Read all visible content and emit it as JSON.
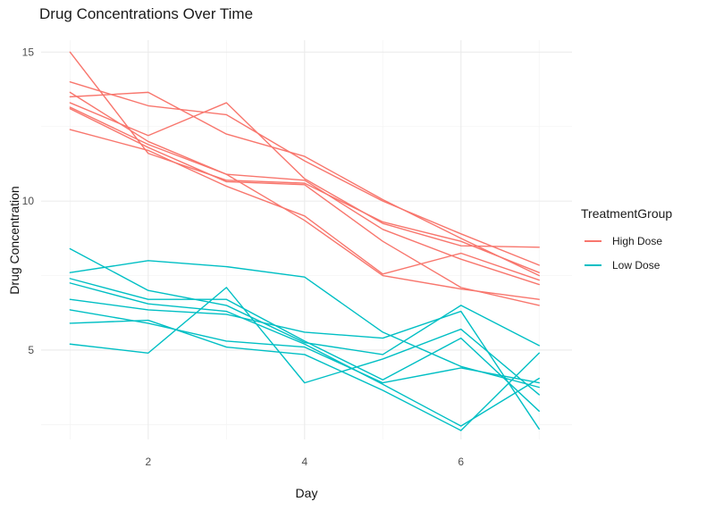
{
  "title": "Drug Concentrations Over Time",
  "legend": {
    "title": "TreatmentGroup",
    "items": [
      {
        "label": "High Dose",
        "color": "#F8766D"
      },
      {
        "label": "Low Dose",
        "color": "#00BFC4"
      }
    ]
  },
  "colors": {
    "high_dose": "#F8766D",
    "low_dose": "#00BFC4",
    "grid_major": "#EBEBEB",
    "grid_minor": "#F4F4F4",
    "tick_text": "#4D4D4D",
    "background": "#FFFFFF"
  },
  "chart_data": {
    "type": "line",
    "title": "Drug Concentrations Over Time",
    "xlabel": "Day",
    "ylabel": "Drug Concentration",
    "x": [
      1,
      2,
      3,
      4,
      5,
      6,
      7
    ],
    "x_major_ticks": [
      2,
      4,
      6
    ],
    "x_minor_ticks": [
      1,
      3,
      5,
      7
    ],
    "y_major_ticks": [
      5,
      10,
      15
    ],
    "y_minor_ticks": [
      2.5,
      7.5,
      12.5
    ],
    "xlim": [
      0.63,
      7.42
    ],
    "ylim": [
      2.0,
      15.4
    ],
    "grid": "major+minor",
    "legend_position": "right",
    "series": [
      {
        "group": "High Dose",
        "color": "#F8766D",
        "values": [
          15.0,
          11.6,
          10.7,
          10.6,
          9.3,
          8.65,
          7.6
        ]
      },
      {
        "group": "High Dose",
        "color": "#F8766D",
        "values": [
          14.0,
          13.2,
          12.9,
          11.35,
          10.0,
          8.9,
          7.85
        ]
      },
      {
        "group": "High Dose",
        "color": "#F8766D",
        "values": [
          13.5,
          13.65,
          12.25,
          11.5,
          10.05,
          8.75,
          7.5
        ]
      },
      {
        "group": "High Dose",
        "color": "#F8766D",
        "values": [
          13.3,
          12.2,
          13.3,
          10.75,
          9.25,
          8.5,
          8.45
        ]
      },
      {
        "group": "High Dose",
        "color": "#F8766D",
        "values": [
          13.15,
          11.9,
          10.9,
          10.7,
          9.05,
          8.05,
          7.2
        ]
      },
      {
        "group": "High Dose",
        "color": "#F8766D",
        "values": [
          13.1,
          11.8,
          10.65,
          10.55,
          8.65,
          7.1,
          6.5
        ]
      },
      {
        "group": "High Dose",
        "color": "#F8766D",
        "values": [
          12.4,
          11.7,
          10.5,
          9.5,
          7.55,
          8.25,
          7.35
        ]
      },
      {
        "group": "High Dose",
        "color": "#F8766D",
        "values": [
          13.65,
          12.0,
          10.9,
          9.35,
          7.5,
          7.05,
          6.7
        ]
      },
      {
        "group": "Low Dose",
        "color": "#00BFC4",
        "values": [
          8.4,
          7.0,
          6.5,
          5.25,
          4.85,
          6.5,
          5.15
        ]
      },
      {
        "group": "Low Dose",
        "color": "#00BFC4",
        "values": [
          7.6,
          8.0,
          7.8,
          7.45,
          5.6,
          4.45,
          3.75
        ]
      },
      {
        "group": "Low Dose",
        "color": "#00BFC4",
        "values": [
          7.4,
          6.7,
          6.7,
          5.3,
          4.0,
          5.4,
          2.95
        ]
      },
      {
        "group": "Low Dose",
        "color": "#00BFC4",
        "values": [
          7.25,
          6.55,
          6.3,
          5.2,
          3.85,
          2.45,
          4.05
        ]
      },
      {
        "group": "Low Dose",
        "color": "#00BFC4",
        "values": [
          6.7,
          6.35,
          6.2,
          5.6,
          5.4,
          6.3,
          2.35
        ]
      },
      {
        "group": "Low Dose",
        "color": "#00BFC4",
        "values": [
          6.35,
          5.9,
          5.3,
          5.1,
          3.9,
          4.4,
          3.9
        ]
      },
      {
        "group": "Low Dose",
        "color": "#00BFC4",
        "values": [
          5.9,
          6.0,
          5.1,
          4.85,
          3.65,
          2.3,
          4.9
        ]
      },
      {
        "group": "Low Dose",
        "color": "#00BFC4",
        "values": [
          5.2,
          4.9,
          7.1,
          3.9,
          4.7,
          5.7,
          3.5
        ]
      }
    ]
  }
}
